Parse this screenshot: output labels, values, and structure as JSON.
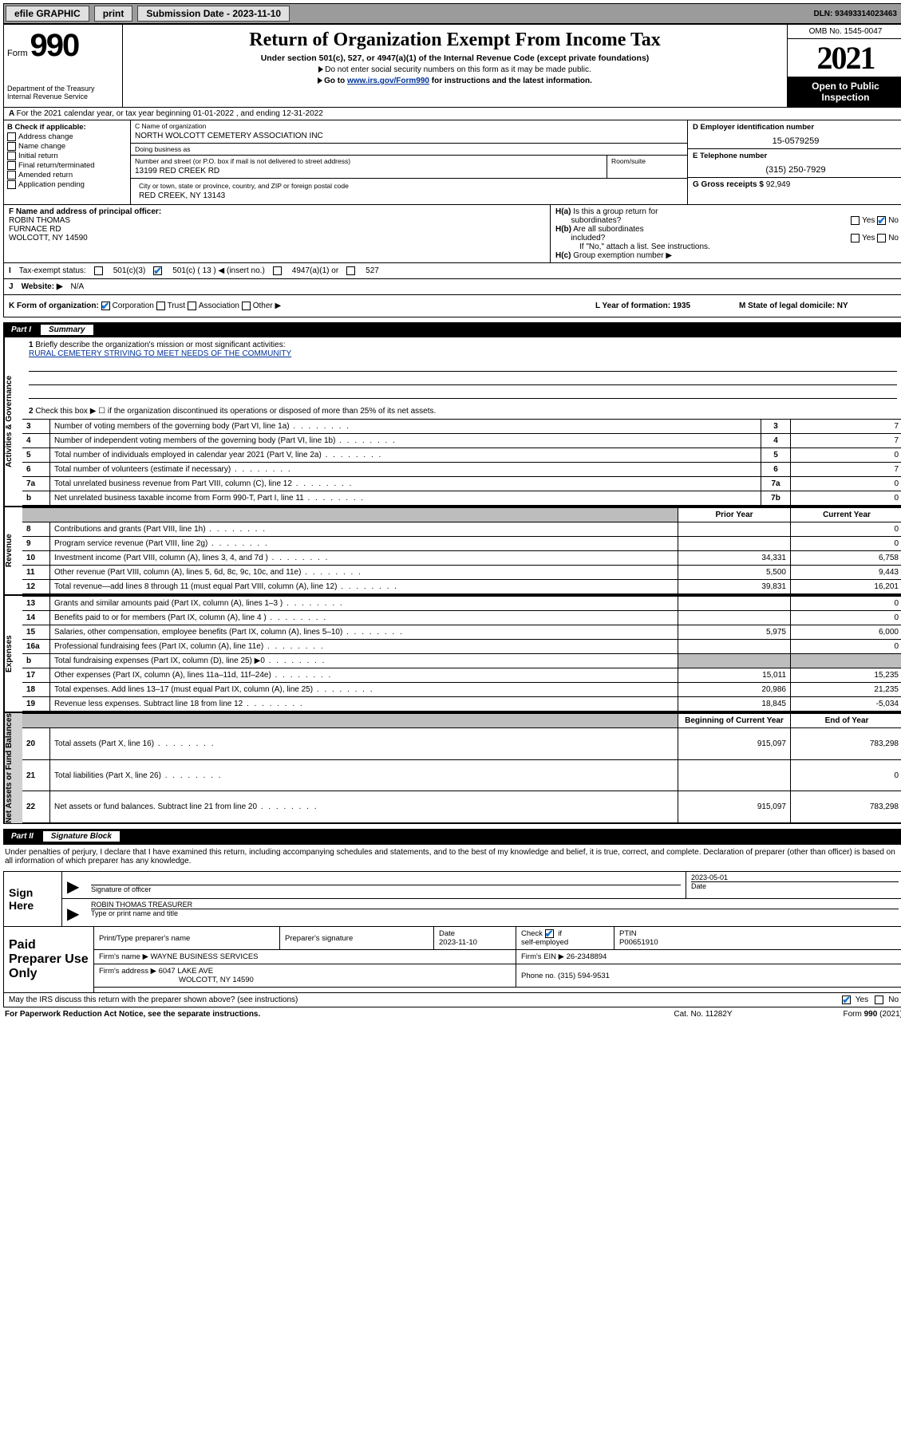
{
  "topbar": {
    "efile": "efile GRAPHIC",
    "print": "print",
    "sub_lbl": "Submission Date - 2023-11-10",
    "dln": "DLN: 93493314023463"
  },
  "header": {
    "form_word": "Form",
    "form_num": "990",
    "dept": "Department of the Treasury\nInternal Revenue Service",
    "title": "Return of Organization Exempt From Income Tax",
    "sub": "Under section 501(c), 527, or 4947(a)(1) of the Internal Revenue Code (except private foundations)",
    "note1": "Do not enter social security numbers on this form as it may be made public.",
    "note2_pre": "Go to ",
    "note2_link": "www.irs.gov/Form990",
    "note2_post": " for instructions and the latest information.",
    "omb": "OMB No. 1545-0047",
    "year": "2021",
    "otp": "Open to Public Inspection"
  },
  "row_a": "For the 2021 calendar year, or tax year beginning 01-01-2022   , and ending 12-31-2022",
  "section_b": {
    "title": "B Check if applicable:",
    "items": [
      "Address change",
      "Name change",
      "Initial return",
      "Final return/terminated",
      "Amended return",
      "Application pending"
    ]
  },
  "section_c": {
    "name_lbl": "C Name of organization",
    "name": "NORTH WOLCOTT CEMETERY ASSOCIATION INC",
    "dba_lbl": "Doing business as",
    "addr_lbl": "Number and street (or P.O. box if mail is not delivered to street address)",
    "addr": "13199 RED CREEK RD",
    "room_lbl": "Room/suite",
    "city_lbl": "City or town, state or province, country, and ZIP or foreign postal code",
    "city": "RED CREEK, NY  13143"
  },
  "section_d": {
    "ein_lbl": "D Employer identification number",
    "ein": "15-0579259",
    "phone_lbl": "E Telephone number",
    "phone": "(315) 250-7929",
    "gross_lbl": "G Gross receipts $",
    "gross": "92,949"
  },
  "section_f": {
    "lbl": "F Name and address of principal officer:",
    "name": "ROBIN THOMAS",
    "addr1": "FURNACE RD",
    "addr2": "WOLCOTT, NY  14590"
  },
  "section_h": {
    "ha": "H(a)  Is this a group return for subordinates?",
    "hb": "H(b)  Are all subordinates included?",
    "hb_note": "If \"No,\" attach a list. See instructions.",
    "hc": "H(c)  Group exemption number ▶",
    "yes": "Yes",
    "no": "No"
  },
  "row_i": {
    "lbl": "Tax-exempt status:",
    "o1": "501(c)(3)",
    "o2": "501(c) ( 13 ) ◀ (insert no.)",
    "o3": "4947(a)(1) or",
    "o4": "527"
  },
  "row_j": {
    "lbl": "Website: ▶",
    "val": "N/A"
  },
  "row_k": {
    "lbl": "K Form of organization:",
    "opts": [
      "Corporation",
      "Trust",
      "Association",
      "Other ▶"
    ],
    "l": "L Year of formation: 1935",
    "m": "M State of legal domicile: NY"
  },
  "part1": {
    "num": "Part I",
    "title": "Summary"
  },
  "summary": {
    "briefly": "Briefly describe the organization's mission or most significant activities:",
    "mission": "RURAL CEMETERY STRIVING TO MEET NEEDS OF THE COMMUNITY",
    "line2": "Check this box ▶ ☐  if the organization discontinued its operations or disposed of more than 25% of its net assets.",
    "vtabs": [
      "Activities & Governance",
      "Revenue",
      "Expenses",
      "Net Assets or Fund Balances"
    ],
    "gov_rows": [
      {
        "n": "3",
        "d": "Number of voting members of the governing body (Part VI, line 1a)",
        "b": "3",
        "v": "7"
      },
      {
        "n": "4",
        "d": "Number of independent voting members of the governing body (Part VI, line 1b)",
        "b": "4",
        "v": "7"
      },
      {
        "n": "5",
        "d": "Total number of individuals employed in calendar year 2021 (Part V, line 2a)",
        "b": "5",
        "v": "0"
      },
      {
        "n": "6",
        "d": "Total number of volunteers (estimate if necessary)",
        "b": "6",
        "v": "7"
      },
      {
        "n": "7a",
        "d": "Total unrelated business revenue from Part VIII, column (C), line 12",
        "b": "7a",
        "v": "0"
      },
      {
        "n": "b",
        "d": "Net unrelated business taxable income from Form 990-T, Part I, line 11",
        "b": "7b",
        "v": "0"
      }
    ],
    "col_hdrs": {
      "prior": "Prior Year",
      "current": "Current Year",
      "beg": "Beginning of Current Year",
      "end": "End of Year"
    },
    "rev_rows": [
      {
        "n": "8",
        "d": "Contributions and grants (Part VIII, line 1h)",
        "p": "",
        "c": "0"
      },
      {
        "n": "9",
        "d": "Program service revenue (Part VIII, line 2g)",
        "p": "",
        "c": "0"
      },
      {
        "n": "10",
        "d": "Investment income (Part VIII, column (A), lines 3, 4, and 7d )",
        "p": "34,331",
        "c": "6,758"
      },
      {
        "n": "11",
        "d": "Other revenue (Part VIII, column (A), lines 5, 6d, 8c, 9c, 10c, and 11e)",
        "p": "5,500",
        "c": "9,443"
      },
      {
        "n": "12",
        "d": "Total revenue—add lines 8 through 11 (must equal Part VIII, column (A), line 12)",
        "p": "39,831",
        "c": "16,201"
      }
    ],
    "exp_rows": [
      {
        "n": "13",
        "d": "Grants and similar amounts paid (Part IX, column (A), lines 1–3 )",
        "p": "",
        "c": "0"
      },
      {
        "n": "14",
        "d": "Benefits paid to or for members (Part IX, column (A), line 4 )",
        "p": "",
        "c": "0"
      },
      {
        "n": "15",
        "d": "Salaries, other compensation, employee benefits (Part IX, column (A), lines 5–10)",
        "p": "5,975",
        "c": "6,000"
      },
      {
        "n": "16a",
        "d": "Professional fundraising fees (Part IX, column (A), line 11e)",
        "p": "",
        "c": "0"
      },
      {
        "n": "b",
        "d": "Total fundraising expenses (Part IX, column (D), line 25) ▶0",
        "p": "shade",
        "c": "shade"
      },
      {
        "n": "17",
        "d": "Other expenses (Part IX, column (A), lines 11a–11d, 11f–24e)",
        "p": "15,011",
        "c": "15,235"
      },
      {
        "n": "18",
        "d": "Total expenses. Add lines 13–17 (must equal Part IX, column (A), line 25)",
        "p": "20,986",
        "c": "21,235"
      },
      {
        "n": "19",
        "d": "Revenue less expenses. Subtract line 18 from line 12",
        "p": "18,845",
        "c": "-5,034"
      }
    ],
    "net_rows": [
      {
        "n": "20",
        "d": "Total assets (Part X, line 16)",
        "p": "915,097",
        "c": "783,298"
      },
      {
        "n": "21",
        "d": "Total liabilities (Part X, line 26)",
        "p": "",
        "c": "0"
      },
      {
        "n": "22",
        "d": "Net assets or fund balances. Subtract line 21 from line 20",
        "p": "915,097",
        "c": "783,298"
      }
    ]
  },
  "part2": {
    "num": "Part II",
    "title": "Signature Block"
  },
  "sig": {
    "decl": "Under penalties of perjury, I declare that I have examined this return, including accompanying schedules and statements, and to the best of my knowledge and belief, it is true, correct, and complete. Declaration of preparer (other than officer) is based on all information of which preparer has any knowledge.",
    "sign_here": "Sign Here",
    "sig_officer": "Signature of officer",
    "date": "2023-05-01",
    "date_lbl": "Date",
    "name": "ROBIN THOMAS TREASURER",
    "name_lbl": "Type or print name and title"
  },
  "prep": {
    "title": "Paid Preparer Use Only",
    "h1": "Print/Type preparer's name",
    "h2": "Preparer's signature",
    "h3": "Date",
    "h3v": "2023-11-10",
    "h4": "Check ☑ if self-employed",
    "h5": "PTIN",
    "h5v": "P00651910",
    "firm_lbl": "Firm's name    ▶",
    "firm": "WAYNE BUSINESS SERVICES",
    "ein_lbl": "Firm's EIN ▶",
    "ein": "26-2348894",
    "addr_lbl": "Firm's address ▶",
    "addr1": "6047 LAKE AVE",
    "addr2": "WOLCOTT, NY  14590",
    "phone_lbl": "Phone no.",
    "phone": "(315) 594-9531"
  },
  "footer": {
    "may": "May the IRS discuss this return with the preparer shown above? (see instructions)",
    "paperwork": "For Paperwork Reduction Act Notice, see the separate instructions.",
    "cat": "Cat. No. 11282Y",
    "form": "Form 990 (2021)"
  }
}
